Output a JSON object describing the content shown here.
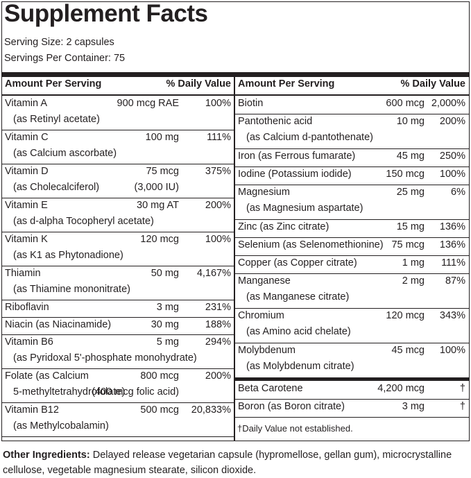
{
  "title": "Supplement Facts",
  "serving_size": "Serving Size: 2 capsules",
  "servings_per_container": "Servings Per Container: 75",
  "left": {
    "header": {
      "amount": "Amount Per Serving",
      "dv": "% Daily Value"
    },
    "rows": [
      {
        "name": "Vitamin A",
        "detail": "(as Retinyl acetate)",
        "amount": "900 mcg RAE",
        "dv": "100%"
      },
      {
        "name": "Vitamin C",
        "detail": "(as Calcium ascorbate)",
        "amount": "100 mg",
        "dv": "111%"
      },
      {
        "name": "Vitamin D",
        "detail": "(as Cholecalciferol)",
        "amount": "75 mcg",
        "amount_detail": "(3,000 IU)",
        "dv": "375%"
      },
      {
        "name": "Vitamin E",
        "detail": "(as d-alpha Tocopheryl acetate)",
        "amount": "30 mg AT",
        "dv": "200%"
      },
      {
        "name": "Vitamin K",
        "detail": "(as K1 as Phytonadione)",
        "amount": "120 mcg",
        "dv": "100%"
      },
      {
        "name": "Thiamin",
        "detail": "(as Thiamine mononitrate)",
        "amount": "50 mg",
        "dv": "4,167%"
      },
      {
        "name": "Riboflavin",
        "amount": "3 mg",
        "dv": "231%"
      },
      {
        "name": "Niacin (as Niacinamide)",
        "amount": "30 mg",
        "dv": "188%"
      },
      {
        "name": "Vitamin B6",
        "detail": "(as Pyridoxal 5'-phosphate monohydrate)",
        "amount": "5 mg",
        "dv": "294%"
      },
      {
        "name": "Folate (as Calcium",
        "detail": "5-methyltetrahydrofolate)",
        "amount": "800 mcg",
        "amount_detail": "(400 mcg folic acid)",
        "dv": "200%"
      },
      {
        "name": "Vitamin B12",
        "detail": "(as Methylcobalamin)",
        "amount": "500 mcg",
        "dv": "20,833%"
      }
    ]
  },
  "right": {
    "header": {
      "amount": "Amount Per Serving",
      "dv": "% Daily Value"
    },
    "rows": [
      {
        "name": "Biotin",
        "amount": "600 mcg",
        "dv": "2,000%"
      },
      {
        "name": "Pantothenic acid",
        "detail": "(as Calcium d-pantothenate)",
        "amount": "10 mg",
        "dv": "200%"
      },
      {
        "name": "Iron (as Ferrous fumarate)",
        "amount": "45 mg",
        "dv": "250%"
      },
      {
        "name": "Iodine (Potassium iodide)",
        "amount": "150 mcg",
        "dv": "100%"
      },
      {
        "name": "Magnesium",
        "detail": "(as Magnesium aspartate)",
        "amount": "25 mg",
        "dv": "6%"
      },
      {
        "name": "Zinc (as Zinc citrate)",
        "amount": "15 mg",
        "dv": "136%"
      },
      {
        "name": "Selenium (as Selenomethionine)",
        "amount": "75 mcg",
        "dv": "136%"
      },
      {
        "name": "Copper (as Copper citrate)",
        "amount": "1 mg",
        "dv": "111%"
      },
      {
        "name": "Manganese",
        "detail": "(as Manganese citrate)",
        "amount": "2 mg",
        "dv": "87%"
      },
      {
        "name": "Chromium",
        "detail": "(as Amino acid chelate)",
        "amount": "120 mcg",
        "dv": "343%"
      },
      {
        "name": "Molybdenum",
        "detail": "(as Molybdenum citrate)",
        "amount": "45 mcg",
        "dv": "100%"
      }
    ],
    "extra_rows": [
      {
        "name": "Beta Carotene",
        "amount": "4,200 mcg",
        "dv": "†"
      },
      {
        "name": "Boron (as Boron citrate)",
        "amount": "3 mg",
        "dv": "†"
      }
    ],
    "footnote": "†Daily Value not established."
  },
  "other_ingredients": {
    "label": "Other Ingredients:",
    "text": "Delayed release vegetarian capsule (hypromellose, gellan gum), microcrystalline cellulose, vegetable magnesium stearate, silicon dioxide."
  }
}
